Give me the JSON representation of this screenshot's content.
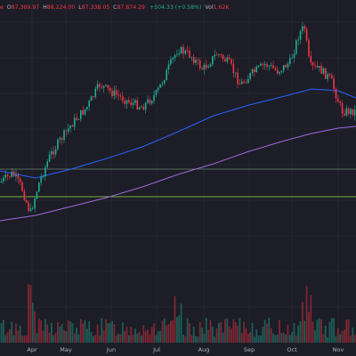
{
  "legend": {
    "marker": "e",
    "open_label": "O",
    "open_value": "87,369.97",
    "high_label": "H",
    "high_value": "88,224.00",
    "low_label": "L",
    "low_value": "87,338.05",
    "close_label": "C",
    "close_value": "87,874.29",
    "change": "+504.33 (+0.58%)",
    "vol_label": "Vol",
    "vol_value": "1.62K"
  },
  "time_axis": {
    "months": [
      "Apr",
      "May",
      "Jun",
      "Jul",
      "Aug",
      "Sep",
      "Oct",
      "Nov"
    ]
  },
  "colors": {
    "background": "#1c1d26",
    "up": "#22ab94",
    "down": "#f23645",
    "ma_fast": "#2962ff",
    "ma_slow": "#9c6ade",
    "support_line": "#7cb342",
    "grid": "#2a2e39"
  },
  "chart_data": {
    "type": "candlestick",
    "x_axis_ticks": [
      "Apr",
      "May",
      "Jun",
      "Jul",
      "Aug",
      "Sep",
      "Oct",
      "Nov"
    ],
    "price_path_approx": [
      {
        "x": "Mar",
        "close": 84000
      },
      {
        "x": "Apr",
        "close": 83000
      },
      {
        "x": "Apr",
        "close": 78000
      },
      {
        "x": "May",
        "close": 94000
      },
      {
        "x": "May",
        "close": 104000
      },
      {
        "x": "Jun",
        "close": 106000
      },
      {
        "x": "Jun",
        "close": 104000
      },
      {
        "x": "Jul",
        "close": 108000
      },
      {
        "x": "Jul",
        "close": 118000
      },
      {
        "x": "Aug",
        "close": 115000
      },
      {
        "x": "Aug",
        "close": 113000
      },
      {
        "x": "Sep",
        "close": 111000
      },
      {
        "x": "Sep",
        "close": 114000
      },
      {
        "x": "Oct",
        "close": 123000
      },
      {
        "x": "Oct",
        "close": 110000
      },
      {
        "x": "Nov",
        "close": 104000
      },
      {
        "x": "Nov",
        "close": 100000
      }
    ],
    "legend": "top-left",
    "grid": true
  }
}
